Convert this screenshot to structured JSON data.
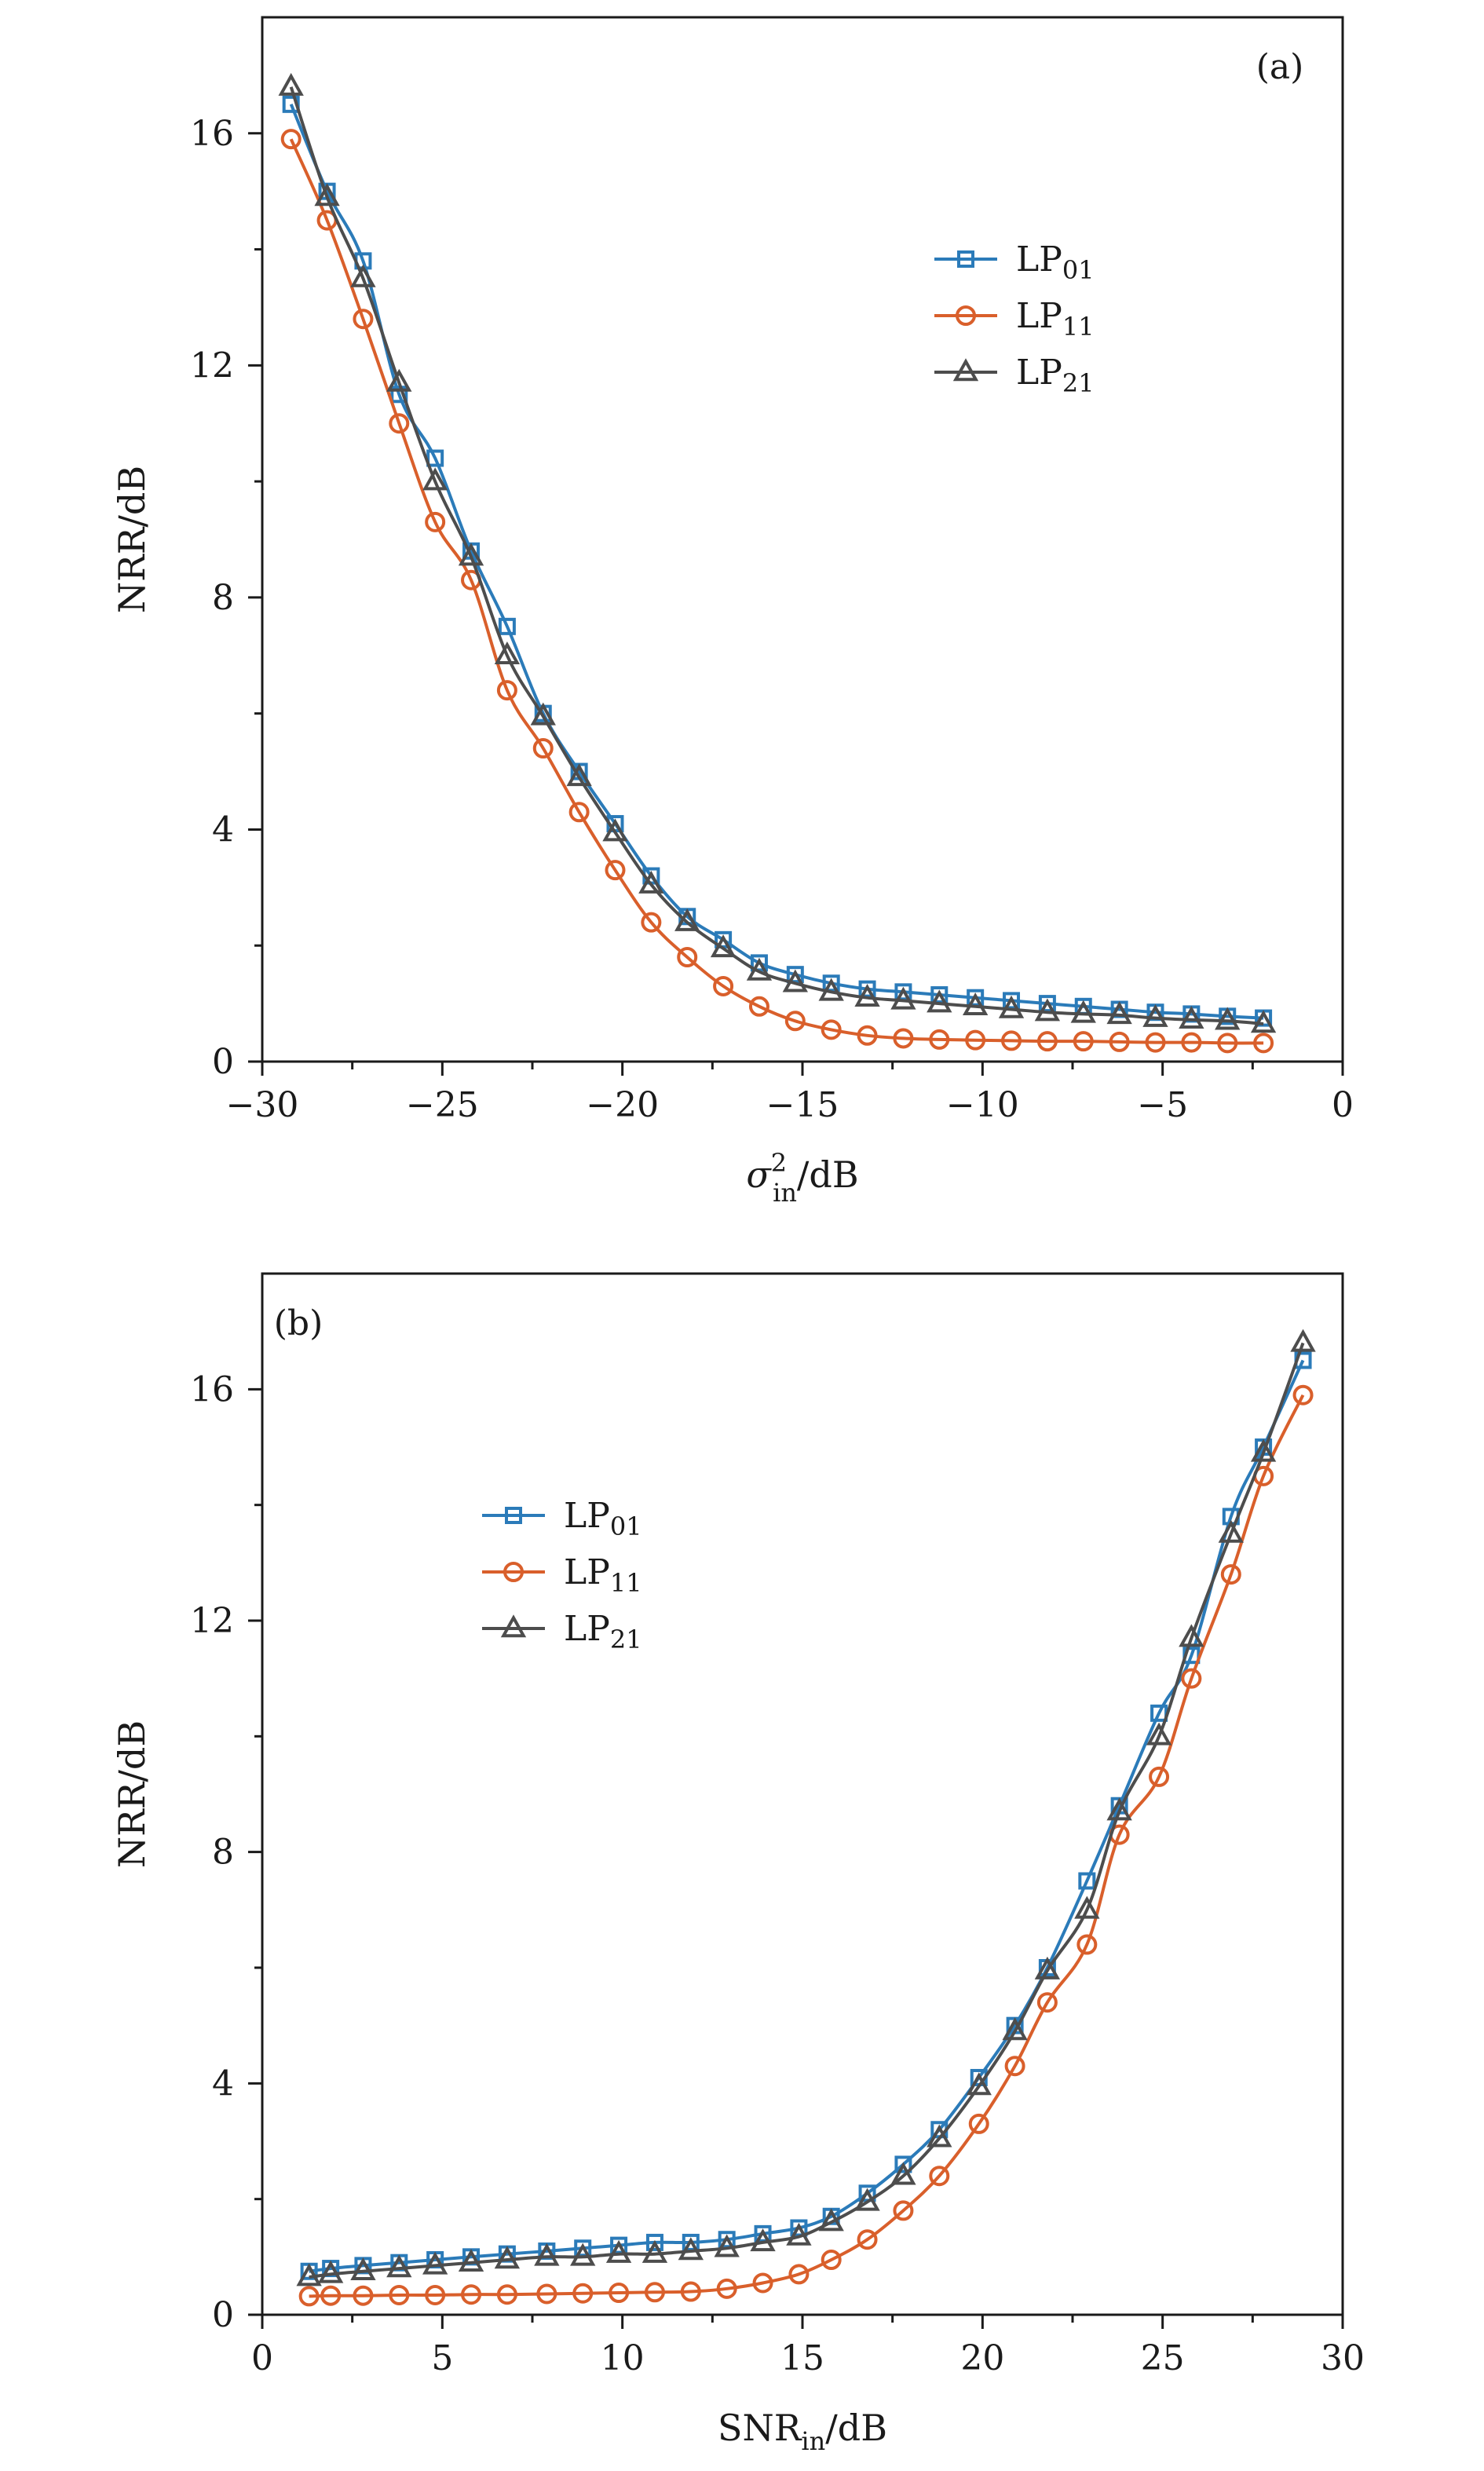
{
  "chart_data": [
    {
      "type": "line",
      "panel_label": "(a)",
      "xlabel": {
        "main": "σ",
        "sup": "2",
        "sub": "in",
        "unit": "/dB"
      },
      "ylabel": "NRR/dB",
      "xlim": [
        -30,
        0
      ],
      "ylim": [
        0,
        18
      ],
      "xticks": [
        -30,
        -25,
        -20,
        -15,
        -10,
        -5,
        0
      ],
      "xtick_labels": [
        "−30",
        "−25",
        "−20",
        "−15",
        "−10",
        "−5",
        "0"
      ],
      "yticks": [
        0,
        4,
        8,
        12,
        16
      ],
      "ytick_labels": [
        "0",
        "4",
        "8",
        "12",
        "16"
      ],
      "legend_position": "upper-right",
      "x": [
        -29.2,
        -28.2,
        -27.2,
        -26.2,
        -25.2,
        -24.2,
        -23.2,
        -22.2,
        -21.2,
        -20.2,
        -19.2,
        -18.2,
        -17.2,
        -16.2,
        -15.2,
        -14.2,
        -13.2,
        -12.2,
        -11.2,
        -10.2,
        -9.2,
        -8.2,
        -7.2,
        -6.2,
        -5.2,
        -4.2,
        -3.2,
        -2.2
      ],
      "series": [
        {
          "name": "LP01",
          "label_main": "LP",
          "label_sub": "01",
          "color": "#2b7bb9",
          "marker": "square",
          "values": [
            16.5,
            15.0,
            13.8,
            11.5,
            10.4,
            8.8,
            7.5,
            6.0,
            5.0,
            4.1,
            3.2,
            2.5,
            2.1,
            1.7,
            1.5,
            1.35,
            1.25,
            1.2,
            1.15,
            1.1,
            1.05,
            1.0,
            0.95,
            0.9,
            0.85,
            0.82,
            0.78,
            0.75
          ]
        },
        {
          "name": "LP11",
          "label_main": "LP",
          "label_sub": "11",
          "color": "#d95f2b",
          "marker": "circle",
          "values": [
            15.9,
            14.5,
            12.8,
            11.0,
            9.3,
            8.3,
            6.4,
            5.4,
            4.3,
            3.3,
            2.4,
            1.8,
            1.3,
            0.95,
            0.7,
            0.55,
            0.45,
            0.4,
            0.38,
            0.37,
            0.36,
            0.35,
            0.35,
            0.34,
            0.33,
            0.33,
            0.32,
            0.32
          ]
        },
        {
          "name": "LP21",
          "label_main": "LP",
          "label_sub": "21",
          "color": "#4d4d4d",
          "marker": "triangle",
          "values": [
            16.8,
            14.9,
            13.5,
            11.7,
            10.0,
            8.7,
            7.0,
            5.95,
            4.9,
            3.95,
            3.05,
            2.4,
            1.95,
            1.55,
            1.35,
            1.2,
            1.1,
            1.05,
            1.0,
            0.95,
            0.9,
            0.85,
            0.82,
            0.8,
            0.75,
            0.72,
            0.7,
            0.65
          ]
        }
      ]
    },
    {
      "type": "line",
      "panel_label": "(b)",
      "xlabel": {
        "main": "SNR",
        "sup": "",
        "sub": "in",
        "unit": "/dB"
      },
      "ylabel": "NRR/dB",
      "xlim": [
        0,
        30
      ],
      "ylim": [
        0,
        18
      ],
      "xticks": [
        0,
        5,
        10,
        15,
        20,
        25,
        30
      ],
      "xtick_labels": [
        "0",
        "5",
        "10",
        "15",
        "20",
        "25",
        "30"
      ],
      "yticks": [
        0,
        4,
        8,
        12,
        16
      ],
      "ytick_labels": [
        "0",
        "4",
        "8",
        "12",
        "16"
      ],
      "legend_position": "upper-left",
      "x": [
        1.3,
        1.9,
        2.8,
        3.8,
        4.8,
        5.8,
        6.8,
        7.9,
        8.9,
        9.9,
        10.9,
        11.9,
        12.9,
        13.9,
        14.9,
        15.8,
        16.8,
        17.8,
        18.8,
        19.9,
        20.9,
        21.8,
        22.9,
        23.8,
        24.9,
        25.8,
        26.9,
        27.8,
        28.9
      ],
      "series": [
        {
          "name": "LP01",
          "label_main": "LP",
          "label_sub": "01",
          "color": "#2b7bb9",
          "marker": "square",
          "values": [
            0.75,
            0.8,
            0.85,
            0.9,
            0.95,
            1.0,
            1.05,
            1.1,
            1.15,
            1.2,
            1.25,
            1.25,
            1.3,
            1.4,
            1.5,
            1.7,
            2.1,
            2.6,
            3.2,
            4.1,
            5.0,
            6.0,
            7.5,
            8.8,
            10.4,
            11.4,
            13.8,
            15.0,
            16.5
          ]
        },
        {
          "name": "LP11",
          "label_main": "LP",
          "label_sub": "11",
          "color": "#d95f2b",
          "marker": "circle",
          "values": [
            0.32,
            0.33,
            0.33,
            0.34,
            0.34,
            0.35,
            0.35,
            0.36,
            0.37,
            0.38,
            0.39,
            0.4,
            0.45,
            0.55,
            0.7,
            0.95,
            1.3,
            1.8,
            2.4,
            3.3,
            4.3,
            5.4,
            6.4,
            8.3,
            9.3,
            11.0,
            12.8,
            14.5,
            15.9
          ]
        },
        {
          "name": "LP21",
          "label_main": "LP",
          "label_sub": "21",
          "color": "#4d4d4d",
          "marker": "triangle",
          "values": [
            0.65,
            0.7,
            0.75,
            0.8,
            0.85,
            0.9,
            0.95,
            1.0,
            1.0,
            1.05,
            1.05,
            1.1,
            1.15,
            1.25,
            1.35,
            1.6,
            1.95,
            2.4,
            3.05,
            3.95,
            4.9,
            5.95,
            7.0,
            8.7,
            10.0,
            11.7,
            13.5,
            14.9,
            16.8
          ]
        }
      ]
    }
  ]
}
